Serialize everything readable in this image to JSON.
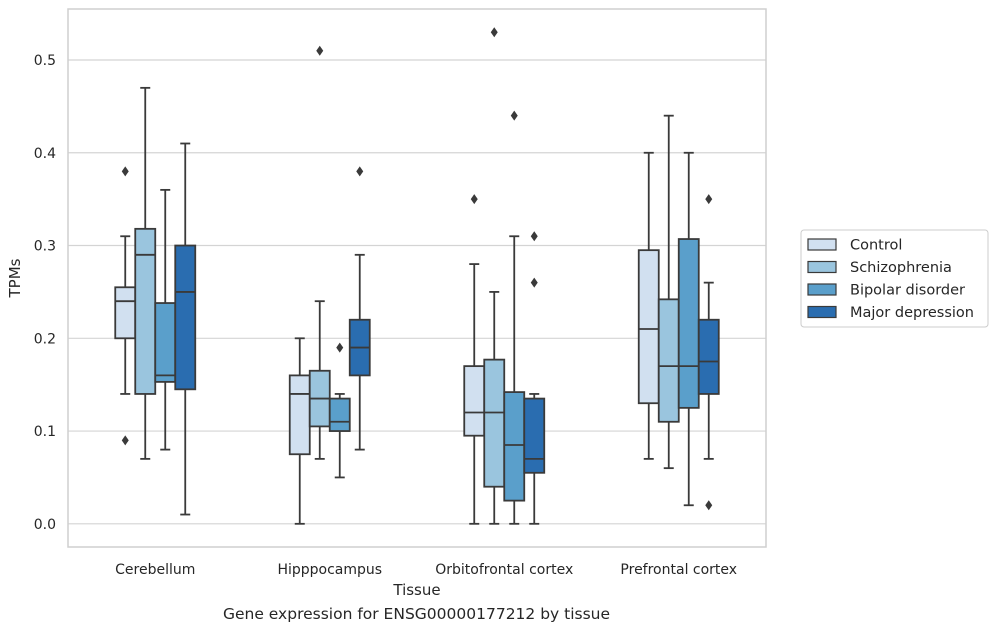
{
  "caption": "Gene expression for ENSG00000177212 by tissue",
  "colors": {
    "Control": "#d1e0f0",
    "Schizophrenia": "#9ac5de",
    "Bipolar disorder": "#5a9fcb",
    "Major depression": "#2a6db0",
    "line": "#3a3a3a",
    "grid": "#d4d4d4",
    "frame": "#cfcfcf"
  },
  "chart_data": {
    "type": "box",
    "xlabel": "Tissue",
    "ylabel": "TPMs",
    "ylim": [
      -0.025,
      0.555
    ],
    "yticks": [
      "0.0",
      "0.1",
      "0.2",
      "0.3",
      "0.4",
      "0.5"
    ],
    "grid": "horizontal",
    "legend_position": "right",
    "categories": [
      "Cerebellum",
      "Hipppocampus",
      "Orbitofrontal cortex",
      "Prefrontal cortex"
    ],
    "series": [
      {
        "name": "Control",
        "boxes": [
          {
            "whislo": 0.14,
            "q1": 0.2,
            "med": 0.24,
            "q3": 0.255,
            "whishi": 0.31,
            "fliers": [
              0.38,
              0.09
            ]
          },
          {
            "whislo": 0.0,
            "q1": 0.075,
            "med": 0.14,
            "q3": 0.16,
            "whishi": 0.2,
            "fliers": []
          },
          {
            "whislo": 0.0,
            "q1": 0.095,
            "med": 0.12,
            "q3": 0.17,
            "whishi": 0.28,
            "fliers": [
              0.35
            ]
          },
          {
            "whislo": 0.07,
            "q1": 0.13,
            "med": 0.21,
            "q3": 0.295,
            "whishi": 0.4,
            "fliers": []
          }
        ]
      },
      {
        "name": "Schizophrenia",
        "boxes": [
          {
            "whislo": 0.07,
            "q1": 0.14,
            "med": 0.29,
            "q3": 0.318,
            "whishi": 0.47,
            "fliers": []
          },
          {
            "whislo": 0.07,
            "q1": 0.105,
            "med": 0.135,
            "q3": 0.165,
            "whishi": 0.24,
            "fliers": [
              0.51
            ]
          },
          {
            "whislo": 0.0,
            "q1": 0.04,
            "med": 0.12,
            "q3": 0.177,
            "whishi": 0.25,
            "fliers": [
              0.53
            ]
          },
          {
            "whislo": 0.06,
            "q1": 0.11,
            "med": 0.17,
            "q3": 0.242,
            "whishi": 0.44,
            "fliers": []
          }
        ]
      },
      {
        "name": "Bipolar disorder",
        "boxes": [
          {
            "whislo": 0.08,
            "q1": 0.153,
            "med": 0.16,
            "q3": 0.238,
            "whishi": 0.36,
            "fliers": []
          },
          {
            "whislo": 0.05,
            "q1": 0.1,
            "med": 0.11,
            "q3": 0.135,
            "whishi": 0.14,
            "fliers": [
              0.19
            ]
          },
          {
            "whislo": 0.0,
            "q1": 0.025,
            "med": 0.085,
            "q3": 0.142,
            "whishi": 0.31,
            "fliers": [
              0.44
            ]
          },
          {
            "whislo": 0.02,
            "q1": 0.125,
            "med": 0.17,
            "q3": 0.307,
            "whishi": 0.4,
            "fliers": []
          }
        ]
      },
      {
        "name": "Major depression",
        "boxes": [
          {
            "whislo": 0.01,
            "q1": 0.145,
            "med": 0.25,
            "q3": 0.3,
            "whishi": 0.41,
            "fliers": []
          },
          {
            "whislo": 0.08,
            "q1": 0.16,
            "med": 0.19,
            "q3": 0.22,
            "whishi": 0.29,
            "fliers": [
              0.38
            ]
          },
          {
            "whislo": 0.0,
            "q1": 0.055,
            "med": 0.07,
            "q3": 0.135,
            "whishi": 0.14,
            "fliers": [
              0.31,
              0.26
            ]
          },
          {
            "whislo": 0.07,
            "q1": 0.14,
            "med": 0.175,
            "q3": 0.22,
            "whishi": 0.26,
            "fliers": [
              0.35,
              0.02
            ]
          }
        ]
      }
    ]
  }
}
